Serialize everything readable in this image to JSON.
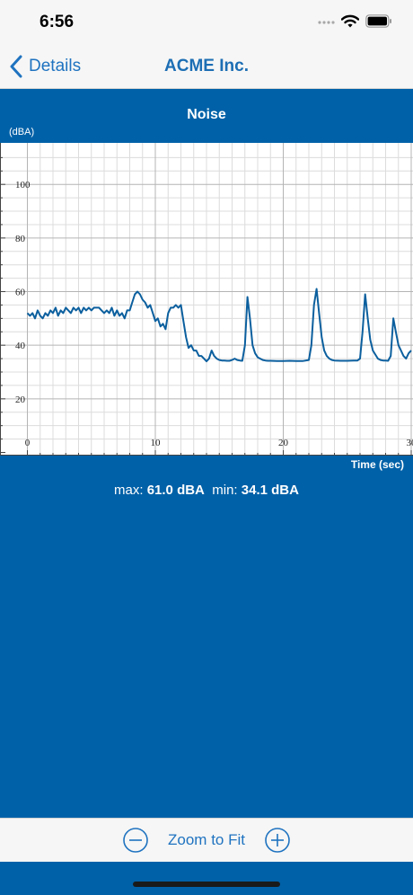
{
  "status_bar": {
    "time": "6:56"
  },
  "nav": {
    "back_label": "Details",
    "title": "ACME Inc."
  },
  "chart_meta": {
    "title": "Noise",
    "y_unit": "(dBA)",
    "x_label": "Time (sec)"
  },
  "stats": {
    "max_label": "max:",
    "max_value": "61.0 dBA",
    "min_label": "min:",
    "min_value": "34.1 dBA"
  },
  "toolbar": {
    "zoom_fit_label": "Zoom to Fit"
  },
  "colors": {
    "accent": "#0061a8",
    "line": "#0b5f9e",
    "link": "#1f73c0"
  },
  "chart_data": {
    "type": "line",
    "title": "Noise",
    "ylabel": "(dBA)",
    "xlabel": "Time (sec)",
    "xlim": [
      0,
      30
    ],
    "ylim": [
      0,
      112
    ],
    "xticks": [
      0,
      10,
      20,
      30
    ],
    "yticks": [
      20,
      40,
      60,
      80,
      100
    ],
    "grid": true,
    "series": [
      {
        "x": [
          0,
          0.2,
          0.4,
          0.6,
          0.8,
          1.0,
          1.2,
          1.4,
          1.6,
          1.8,
          2.0,
          2.2,
          2.4,
          2.6,
          2.8,
          3.0,
          3.2,
          3.4,
          3.6,
          3.8,
          4.0,
          4.2,
          4.4,
          4.6,
          4.8,
          5.0,
          5.2,
          5.4,
          5.6,
          5.8,
          6.0,
          6.2,
          6.4,
          6.6,
          6.8,
          7.0,
          7.2,
          7.4,
          7.6,
          7.8,
          8.0,
          8.2,
          8.4,
          8.6,
          8.8,
          9.0,
          9.2,
          9.4,
          9.6,
          9.8,
          10.0,
          10.2,
          10.4,
          10.6,
          10.8,
          11.0,
          11.2,
          11.4,
          11.6,
          11.8,
          12.0,
          12.2,
          12.4,
          12.6,
          12.8,
          13.0,
          13.2,
          13.4,
          13.6,
          13.8,
          14.0,
          14.2,
          14.4,
          14.6,
          14.8,
          15.0,
          15.2,
          15.4,
          15.6,
          15.8,
          16.0,
          16.2,
          16.4,
          16.6,
          16.8,
          17.0,
          17.2,
          17.4,
          17.6,
          17.8,
          18.0,
          18.2,
          18.4,
          18.6,
          18.8,
          19.0,
          19.5,
          20.0,
          20.5,
          21.0,
          21.5,
          22.0,
          22.2,
          22.4,
          22.6,
          22.8,
          23.0,
          23.2,
          23.4,
          23.6,
          23.8,
          24.0,
          24.5,
          25.0,
          25.5,
          25.8,
          26.0,
          26.2,
          26.4,
          26.6,
          26.8,
          27.0,
          27.2,
          27.4,
          27.6,
          27.8,
          28.0,
          28.2,
          28.4,
          28.6,
          28.8,
          29.0,
          29.2,
          29.4,
          29.6,
          29.8,
          30.0
        ],
        "y": [
          52,
          51,
          52,
          50,
          53,
          51,
          50,
          52,
          51,
          53,
          52,
          54,
          51,
          53,
          52,
          54,
          53,
          52,
          54,
          53,
          54,
          52,
          54,
          53,
          54,
          53,
          54,
          54,
          54,
          53,
          52,
          53,
          52,
          54,
          51,
          53,
          51,
          52,
          50,
          53,
          53,
          56,
          59,
          60,
          59,
          57,
          56,
          54,
          55,
          52,
          49,
          50,
          47,
          48,
          46,
          52,
          54,
          54,
          55,
          54,
          55,
          49,
          43,
          39,
          40,
          38,
          38,
          36,
          36,
          35,
          34,
          35,
          38,
          36,
          35,
          34.5,
          34.3,
          34.3,
          34.2,
          34.2,
          34.5,
          35,
          34.5,
          34.3,
          34.2,
          40,
          58,
          50,
          40,
          37,
          35.5,
          35,
          34.5,
          34.3,
          34.2,
          34.2,
          34.1,
          34.1,
          34.2,
          34.1,
          34.1,
          34.5,
          40,
          55,
          61,
          52,
          43,
          38,
          36,
          35,
          34.5,
          34.3,
          34.2,
          34.2,
          34.3,
          34.3,
          35,
          45,
          59,
          50,
          42,
          38,
          36.5,
          35,
          34.5,
          34.3,
          34.3,
          34.2,
          36,
          50,
          45,
          40,
          38,
          36,
          35,
          37,
          38
        ]
      }
    ]
  }
}
